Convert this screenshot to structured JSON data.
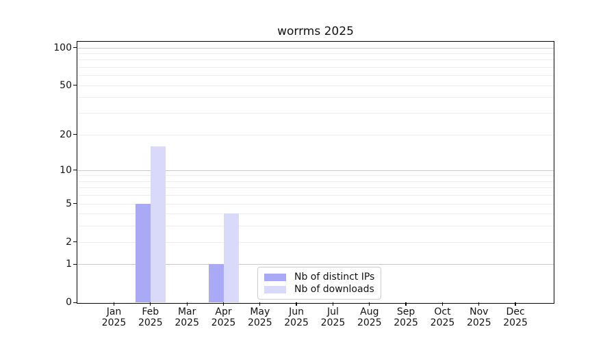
{
  "chart_data": {
    "type": "bar",
    "title": "worrms 2025",
    "categories": [
      "Jan 2025",
      "Feb 2025",
      "Mar 2025",
      "Apr 2025",
      "May 2025",
      "Jun 2025",
      "Jul 2025",
      "Aug 2025",
      "Sep 2025",
      "Oct 2025",
      "Nov 2025",
      "Dec 2025"
    ],
    "series": [
      {
        "name": "Nb of distinct IPs",
        "color": "#a9a9f6",
        "values": [
          0,
          5,
          0,
          1,
          0,
          0,
          0,
          0,
          0,
          0,
          0,
          0
        ]
      },
      {
        "name": "Nb of downloads",
        "color": "#d9d9f9",
        "values": [
          0,
          16,
          0,
          4,
          0,
          0,
          0,
          0,
          0,
          0,
          0,
          0
        ]
      }
    ],
    "xlabel": "",
    "ylabel": "",
    "yscale": "log1p",
    "yticks": [
      0,
      1,
      2,
      5,
      10,
      20,
      50,
      100
    ],
    "ylim": [
      0,
      118
    ],
    "grid_major": [
      1,
      10,
      100
    ],
    "grid_minor": [
      2,
      3,
      4,
      5,
      6,
      7,
      8,
      9,
      20,
      30,
      40,
      50,
      60,
      70,
      80,
      90
    ],
    "legend_position": "lower center inside",
    "colors": {
      "grid_major": "#c9c9c9",
      "grid_minor": "#ededed",
      "axis": "#000000",
      "background": "#ffffff"
    }
  }
}
